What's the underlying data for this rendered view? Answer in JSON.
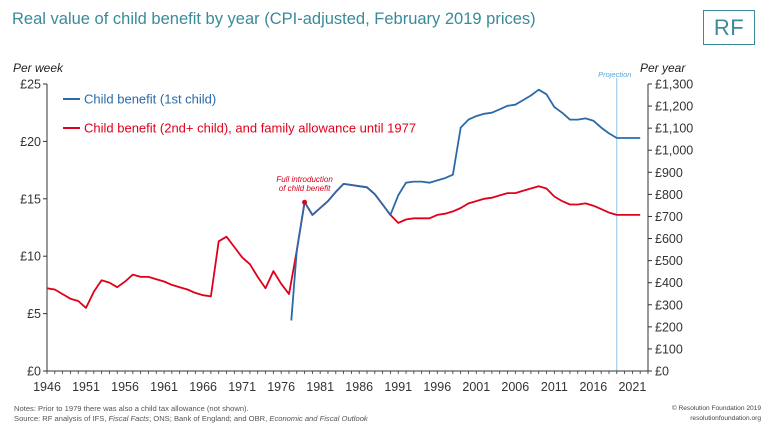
{
  "header": {
    "title": "Real value of child benefit by year (CPI-adjusted, February 2019 prices)",
    "logo_text": "RF"
  },
  "footer": {
    "notes_line1": "Notes: Prior to 1979 there was also a child tax allowance (not shown).",
    "source_prefix": "Source: RF analysis of IFS, ",
    "source_fiscal_facts": "Fiscal Facts",
    "source_middle": "; ONS; Bank of England; and OBR, ",
    "source_efo": "Economic and Fiscal Outlook",
    "credit_line1": "© Resolution Foundation 2019",
    "credit_line2": "resolutionfoundation.org"
  },
  "colors": {
    "first_child": "#2b6aa8",
    "second_child": "#e0001b",
    "projection": "#8cc4e8",
    "title": "#3a8a9a"
  },
  "chart_data": {
    "type": "line",
    "xlim": [
      1946,
      2023
    ],
    "x_ticks": [
      1946,
      1951,
      1956,
      1961,
      1966,
      1971,
      1976,
      1981,
      1986,
      1991,
      1996,
      2001,
      2006,
      2011,
      2016,
      2021
    ],
    "ylabel": "Per week",
    "ylim": [
      0,
      25
    ],
    "y_ticks": [
      0,
      5,
      10,
      15,
      20,
      25
    ],
    "y_tick_labels": [
      "£0",
      "£5",
      "£10",
      "£15",
      "£20",
      "£25"
    ],
    "y2label": "Per year",
    "y2lim": [
      0,
      1300
    ],
    "y2_ticks": [
      0,
      100,
      200,
      300,
      400,
      500,
      600,
      700,
      800,
      900,
      1000,
      1100,
      1200,
      1300
    ],
    "y2_tick_labels": [
      "£0",
      "£100",
      "£200",
      "£300",
      "£400",
      "£500",
      "£600",
      "£700",
      "£800",
      "£900",
      "£1,000",
      "£1,100",
      "£1,200",
      "£1,300"
    ],
    "grid": false,
    "legend_position": "top-left",
    "projection": {
      "start_year": 2019,
      "label": "Projection"
    },
    "annotation": {
      "text_line1": "Full introduction",
      "text_line2": "of child benefit",
      "x": 1979,
      "y": 14.7
    },
    "series": [
      {
        "name": "Child benefit (1st child)",
        "color": "#2b6aa8",
        "x": [
          1977.3,
          1978,
          1979,
          1980,
          1981,
          1982,
          1983,
          1984,
          1985,
          1986,
          1987,
          1988,
          1989,
          1990,
          1991,
          1992,
          1993,
          1994,
          1995,
          1996,
          1997,
          1998,
          1999,
          2000,
          2001,
          2002,
          2003,
          2004,
          2005,
          2006,
          2007,
          2008,
          2009,
          2010,
          2011,
          2012,
          2013,
          2014,
          2015,
          2016,
          2017,
          2018,
          2019,
          2020,
          2021,
          2022
        ],
        "y": [
          4.4,
          10.5,
          14.7,
          13.6,
          14.2,
          14.8,
          15.6,
          16.3,
          16.2,
          16.1,
          16.0,
          15.4,
          14.5,
          13.6,
          15.3,
          16.4,
          16.5,
          16.5,
          16.4,
          16.6,
          16.8,
          17.1,
          21.2,
          21.9,
          22.2,
          22.4,
          22.5,
          22.8,
          23.1,
          23.2,
          23.6,
          24.0,
          24.5,
          24.1,
          23.0,
          22.5,
          21.9,
          21.9,
          22.0,
          21.8,
          21.2,
          20.7,
          20.3,
          20.3,
          20.3,
          20.3
        ]
      },
      {
        "name": "Child benefit (2nd+ child), and family allowance until 1977",
        "color": "#e0001b",
        "x": [
          1946,
          1947,
          1948,
          1949,
          1950,
          1951,
          1952,
          1953,
          1954,
          1955,
          1956,
          1957,
          1958,
          1959,
          1960,
          1961,
          1962,
          1963,
          1964,
          1965,
          1966,
          1967,
          1968,
          1969,
          1970,
          1971,
          1972,
          1973,
          1974,
          1975,
          1976,
          1977,
          1978,
          1979,
          1980,
          1981,
          1982,
          1983,
          1984,
          1985,
          1986,
          1987,
          1988,
          1989,
          1990,
          1991,
          1992,
          1993,
          1994,
          1995,
          1996,
          1997,
          1998,
          1999,
          2000,
          2001,
          2002,
          2003,
          2004,
          2005,
          2006,
          2007,
          2008,
          2009,
          2010,
          2011,
          2012,
          2013,
          2014,
          2015,
          2016,
          2017,
          2018,
          2019,
          2020,
          2021,
          2022
        ],
        "y": [
          7.2,
          7.1,
          6.7,
          6.3,
          6.1,
          5.5,
          6.9,
          7.9,
          7.7,
          7.3,
          7.8,
          8.4,
          8.2,
          8.2,
          8.0,
          7.8,
          7.5,
          7.3,
          7.1,
          6.8,
          6.6,
          6.5,
          11.3,
          11.7,
          10.8,
          9.9,
          9.3,
          8.2,
          7.2,
          8.7,
          7.6,
          6.7,
          10.5,
          14.7,
          13.6,
          14.2,
          14.8,
          15.6,
          16.3,
          16.2,
          16.1,
          16.0,
          15.4,
          14.5,
          13.6,
          12.9,
          13.2,
          13.3,
          13.3,
          13.3,
          13.6,
          13.7,
          13.9,
          14.2,
          14.6,
          14.8,
          15.0,
          15.1,
          15.3,
          15.5,
          15.5,
          15.7,
          15.9,
          16.1,
          15.9,
          15.2,
          14.8,
          14.5,
          14.5,
          14.6,
          14.4,
          14.1,
          13.8,
          13.6,
          13.6,
          13.6,
          13.6
        ]
      }
    ]
  }
}
